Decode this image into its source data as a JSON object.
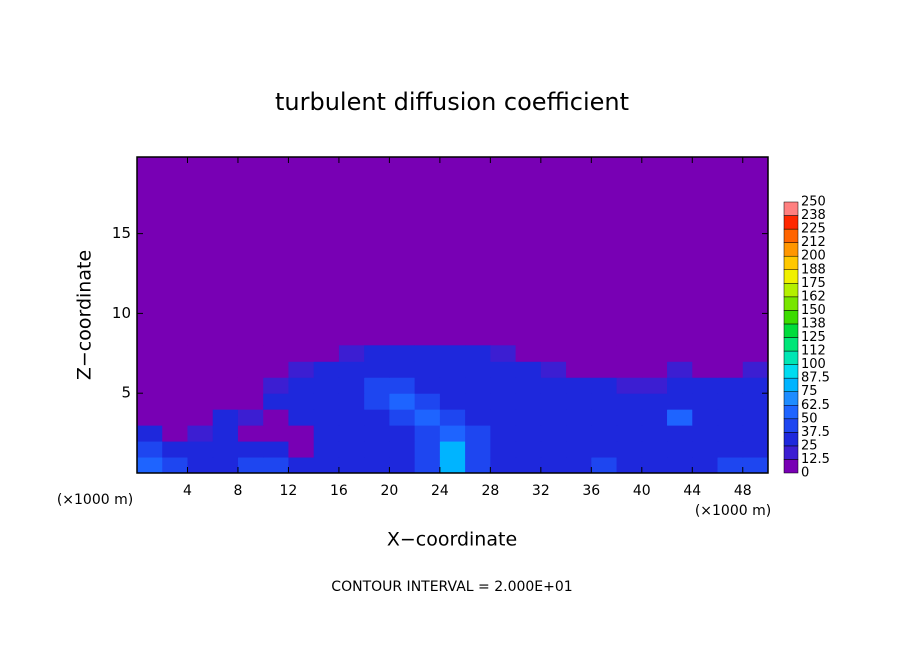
{
  "chart_data": {
    "type": "contour",
    "title": "turbulent diffusion coefficient",
    "x_label": "X−coordinate",
    "y_label": "Z−coordinate",
    "axis_unit": "(×1000 m)",
    "footnote": "CONTOUR INTERVAL = 2.000E+01",
    "xlim": [
      0,
      50
    ],
    "ylim": [
      0,
      19.8
    ],
    "xticks": [
      4,
      8,
      12,
      16,
      20,
      24,
      28,
      32,
      36,
      40,
      44,
      48
    ],
    "yticks": [
      5,
      10,
      15
    ],
    "background_color": "#7800b4",
    "x": [
      1,
      3,
      5,
      7,
      9,
      11,
      13,
      15,
      17,
      19,
      21,
      23,
      25,
      27,
      29,
      31,
      33,
      35,
      37,
      39,
      41,
      43,
      45,
      47,
      49
    ],
    "z": [
      0.5,
      1.5,
      2.5,
      3.5,
      4.5,
      5.5,
      6.5,
      7.5
    ],
    "values": [
      [
        50,
        40,
        35,
        30,
        40,
        45,
        35,
        30,
        30,
        30,
        35,
        40,
        75,
        40,
        35,
        30,
        30,
        35,
        40,
        30,
        30,
        30,
        35,
        40,
        45
      ],
      [
        40,
        30,
        25,
        35,
        30,
        25,
        10,
        30,
        30,
        30,
        35,
        40,
        80,
        40,
        30,
        35,
        30,
        35,
        30,
        30,
        30,
        30,
        25,
        30,
        35
      ],
      [
        30,
        10,
        20,
        35,
        10,
        10,
        10,
        30,
        30,
        30,
        35,
        45,
        60,
        45,
        30,
        30,
        30,
        25,
        25,
        30,
        30,
        30,
        35,
        30,
        30
      ],
      [
        10,
        0,
        10,
        30,
        20,
        10,
        25,
        30,
        25,
        30,
        40,
        50,
        45,
        30,
        30,
        30,
        25,
        30,
        30,
        25,
        30,
        50,
        30,
        30,
        25
      ],
      [
        0,
        0,
        0,
        10,
        10,
        30,
        30,
        30,
        35,
        40,
        55,
        40,
        35,
        30,
        30,
        30,
        30,
        30,
        25,
        25,
        30,
        30,
        30,
        30,
        30
      ],
      [
        0,
        0,
        0,
        0,
        0,
        20,
        30,
        30,
        35,
        40,
        45,
        35,
        30,
        30,
        30,
        30,
        30,
        30,
        30,
        20,
        20,
        30,
        25,
        30,
        30
      ],
      [
        0,
        0,
        0,
        0,
        0,
        10,
        20,
        30,
        30,
        35,
        30,
        30,
        30,
        30,
        30,
        25,
        20,
        10,
        0,
        0,
        0,
        15,
        10,
        10,
        20
      ],
      [
        0,
        0,
        0,
        0,
        0,
        0,
        0,
        0,
        20,
        25,
        25,
        25,
        25,
        30,
        20,
        10,
        0,
        0,
        0,
        0,
        0,
        0,
        0,
        0,
        0
      ]
    ],
    "colorbar": {
      "levels": [
        0,
        12.5,
        25,
        37.5,
        50,
        62.5,
        75,
        87.5,
        100,
        112,
        125,
        138,
        150,
        162,
        175,
        188,
        200,
        212,
        225,
        238,
        250
      ],
      "colors": [
        "#7800b4",
        "#3c1ed2",
        "#1e28dc",
        "#1e46f0",
        "#1e64ff",
        "#1e8cff",
        "#00b4ff",
        "#00dcf0",
        "#00e6b4",
        "#00e678",
        "#00dc3c",
        "#3cdc00",
        "#78e600",
        "#b4f000",
        "#f0f000",
        "#ffc800",
        "#ff9600",
        "#ff6400",
        "#ff2800",
        "#ff8080"
      ]
    }
  }
}
